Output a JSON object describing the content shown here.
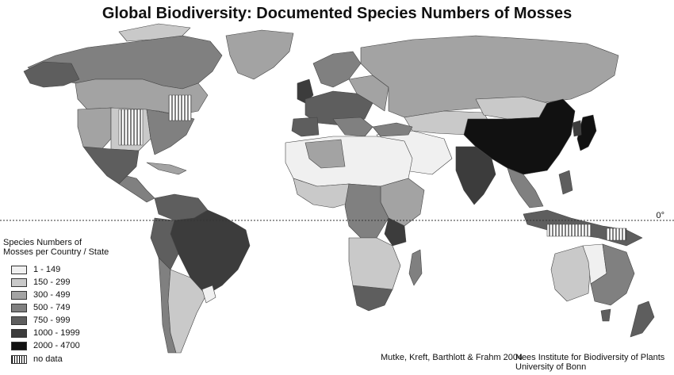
{
  "title": "Global Biodiversity: Documented Species Numbers of Mosses",
  "equator_label": "0°",
  "legend": {
    "title_line1": "Species Numbers of",
    "title_line2": "Mosses per Country / State",
    "classes": [
      {
        "label": "1 - 149",
        "color": "#f0f0f0"
      },
      {
        "label": "150 - 299",
        "color": "#c9c9c9"
      },
      {
        "label": "300 - 499",
        "color": "#a3a3a3"
      },
      {
        "label": "500 - 749",
        "color": "#808080"
      },
      {
        "label": "750 - 999",
        "color": "#5e5e5e"
      },
      {
        "label": "1000 - 1999",
        "color": "#3c3c3c"
      },
      {
        "label": "2000 - 4700",
        "color": "#111111"
      }
    ],
    "no_data": "no data"
  },
  "credits": {
    "authors": "Mutke, Kreft, Barthlott & Frahm 2004",
    "institute_line1": "Nees Institute for Biodiversity of Plants",
    "institute_line2": "University of Bonn"
  }
}
